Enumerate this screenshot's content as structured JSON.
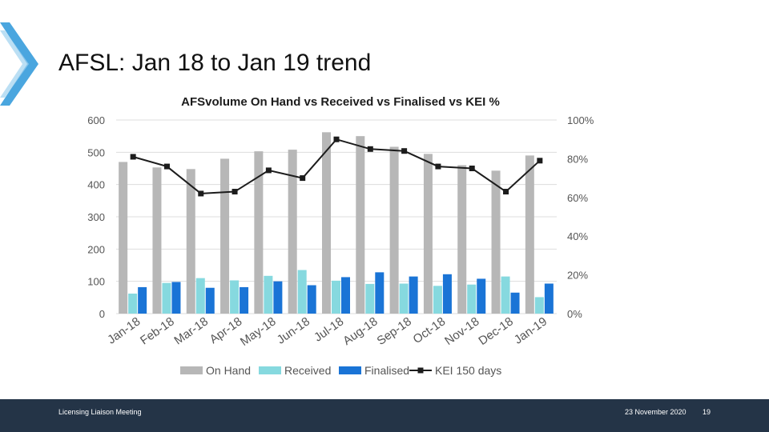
{
  "slide": {
    "title": "AFSL: Jan 18 to Jan 19 trend",
    "footer_left": "Licensing Liaison Meeting",
    "footer_date": "23 November 2020",
    "page_number": "19"
  },
  "colors": {
    "on_hand": "#b7b7b7",
    "received": "#86d9df",
    "finalised": "#1a74d6",
    "kei": "#1c1c1c",
    "grid": "#dddddd",
    "accent_chevron": "#4aa6df",
    "footer": "#243447"
  },
  "chart_data": {
    "type": "bar",
    "title": "AFSvolume On Hand vs Received vs Finalised vs KEI %",
    "categories": [
      "Jan-18",
      "Feb-18",
      "Mar-18",
      "Apr-18",
      "May-18",
      "Jun-18",
      "Jul-18",
      "Aug-18",
      "Sep-18",
      "Oct-18",
      "Nov-18",
      "Dec-18",
      "Jan-19"
    ],
    "series": [
      {
        "name": "On Hand",
        "type": "bar",
        "axis": "left",
        "values": [
          470,
          453,
          448,
          480,
          503,
          508,
          562,
          550,
          517,
          495,
          460,
          443,
          490
        ]
      },
      {
        "name": "Received",
        "type": "bar",
        "axis": "left",
        "values": [
          62,
          95,
          110,
          103,
          117,
          135,
          102,
          92,
          93,
          86,
          90,
          115,
          51
        ]
      },
      {
        "name": "Finalised",
        "type": "bar",
        "axis": "left",
        "values": [
          82,
          98,
          80,
          82,
          100,
          88,
          113,
          128,
          115,
          122,
          108,
          65,
          93
        ]
      },
      {
        "name": "KEI 150 days",
        "type": "line",
        "axis": "right",
        "values": [
          81,
          76,
          62,
          63,
          74,
          70,
          90,
          85,
          84,
          76,
          75,
          63,
          79
        ]
      }
    ],
    "ylim_left": [
      0,
      600
    ],
    "yticks_left": [
      "0",
      "100",
      "200",
      "300",
      "400",
      "500",
      "600"
    ],
    "ylim_right": [
      0,
      100
    ],
    "yticks_right": [
      "0%",
      "20%",
      "40%",
      "60%",
      "80%",
      "100%"
    ],
    "xlabel": "",
    "ylabel": "",
    "grid": true,
    "legend_position": "bottom"
  }
}
